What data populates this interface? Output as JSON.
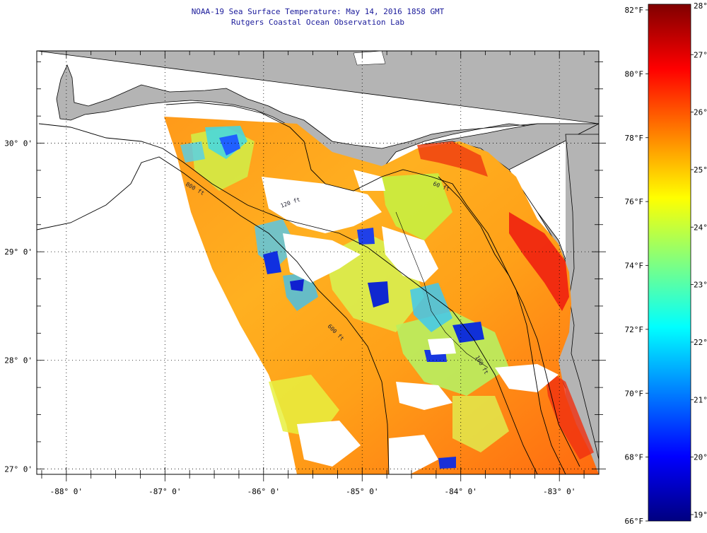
{
  "title": "NOAA-19 Sea Surface Temperature:  May 14, 2016 1858 GMT",
  "subtitle": "Rutgers Coastal Ocean Observation Lab",
  "map": {
    "lon_range": [
      -88.3,
      -82.6
    ],
    "lat_range": [
      26.95,
      30.85
    ],
    "lon_ticks": [
      {
        "value": -88,
        "label": "-88° 0'"
      },
      {
        "value": -87,
        "label": "-87° 0'"
      },
      {
        "value": -86,
        "label": "-86° 0'"
      },
      {
        "value": -85,
        "label": "-85° 0'"
      },
      {
        "value": -84,
        "label": "-84° 0'"
      },
      {
        "value": -83,
        "label": "-83° 0'"
      }
    ],
    "lat_ticks": [
      {
        "value": 30,
        "label": "30° 0'"
      },
      {
        "value": 29,
        "label": "29° 0'"
      },
      {
        "value": 28,
        "label": "28° 0'"
      },
      {
        "value": 27,
        "label": "27° 0'"
      }
    ],
    "contour_labels": [
      "800 ft",
      "120 ft",
      "600 ft",
      "60 ft",
      "100 ft"
    ],
    "colors": {
      "land": "#b4b4b4",
      "cloud": "#ffffff",
      "grid": "#000000"
    }
  },
  "colorbar": {
    "fahrenheit": [
      {
        "value": 82,
        "label": "82°F"
      },
      {
        "value": 80,
        "label": "80°F"
      },
      {
        "value": 78,
        "label": "78°F"
      },
      {
        "value": 76,
        "label": "76°F"
      },
      {
        "value": 74,
        "label": "74°F"
      },
      {
        "value": 72,
        "label": "72°F"
      },
      {
        "value": 70,
        "label": "70°F"
      },
      {
        "value": 68,
        "label": "68°F"
      },
      {
        "value": 66,
        "label": "66°F"
      }
    ],
    "celsius": [
      {
        "value": 28,
        "label": "28°C"
      },
      {
        "value": 27,
        "label": "27°C"
      },
      {
        "value": 26,
        "label": "26°C"
      },
      {
        "value": 25,
        "label": "25°C"
      },
      {
        "value": 24,
        "label": "24°C"
      },
      {
        "value": 23,
        "label": "23°C"
      },
      {
        "value": 22,
        "label": "22°C"
      },
      {
        "value": 21,
        "label": "21°C"
      },
      {
        "value": 20,
        "label": "20°C"
      },
      {
        "value": 19,
        "label": "19°C"
      }
    ],
    "stops": [
      "#000080",
      "#0000ff",
      "#0080ff",
      "#00ffff",
      "#80ff80",
      "#ffff00",
      "#ff8000",
      "#ff0000",
      "#800000"
    ]
  }
}
